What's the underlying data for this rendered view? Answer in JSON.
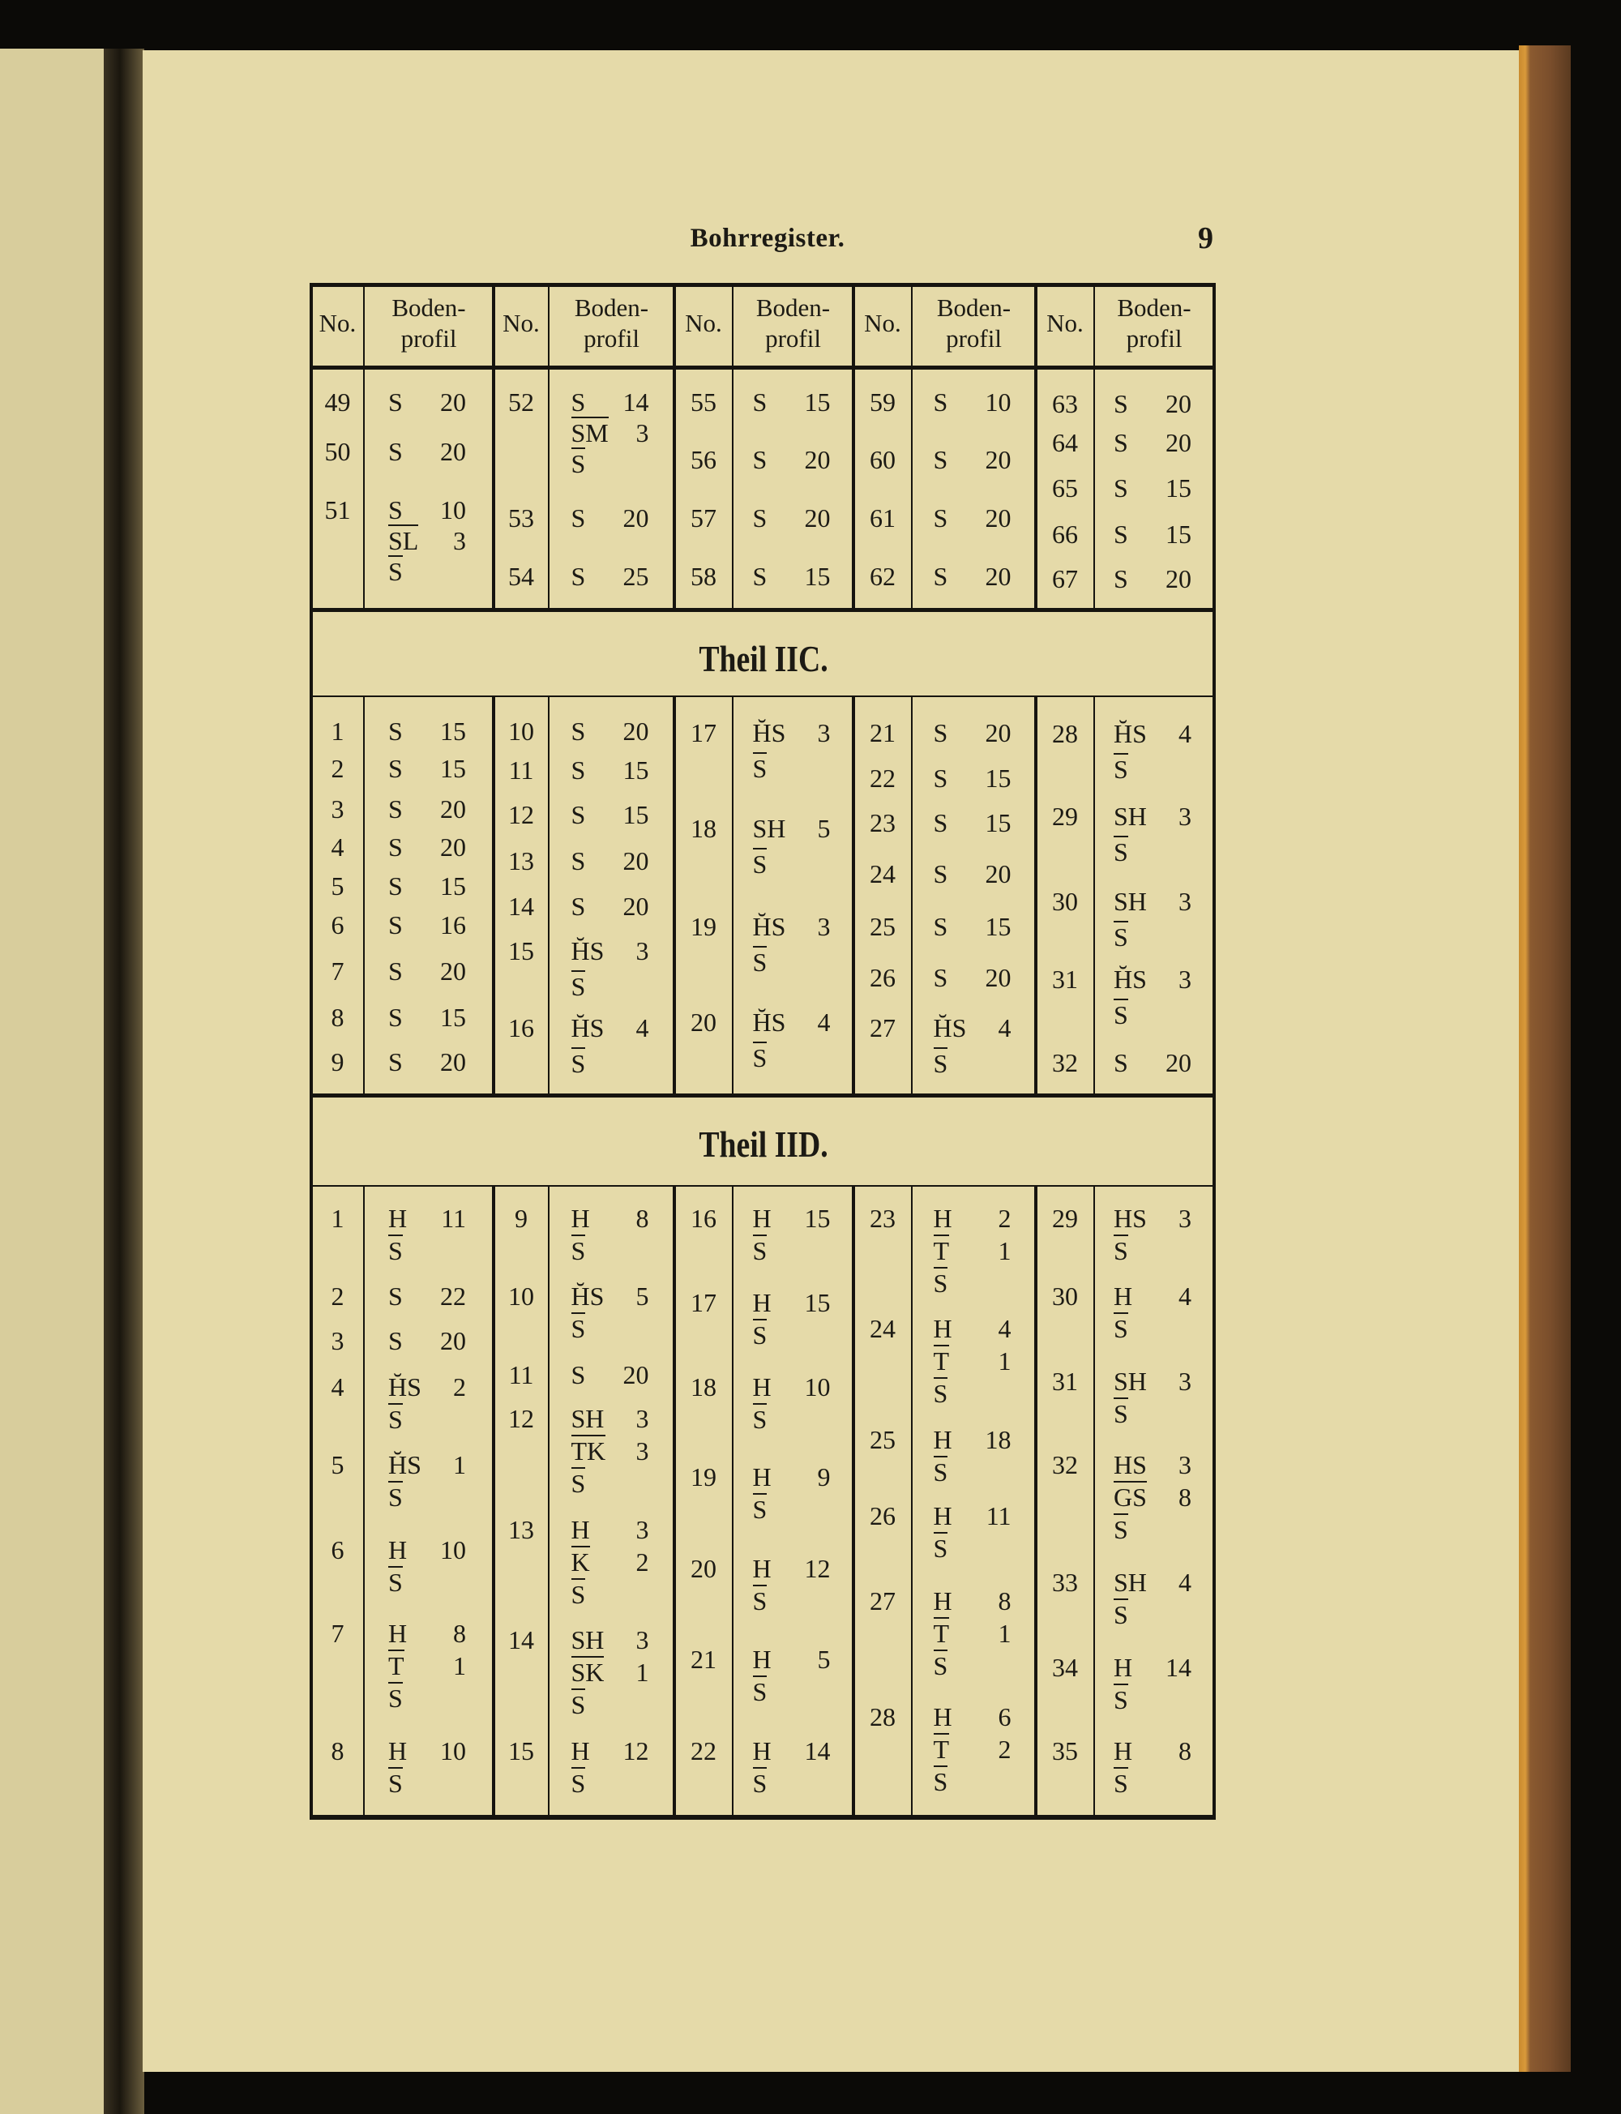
{
  "header": {
    "running_title": "Bohrregister.",
    "page_number": "9"
  },
  "table": {
    "column_headers": {
      "no": "No.",
      "profile_line1": "Boden-",
      "profile_line2": "profil"
    },
    "sections": [
      {
        "title": "",
        "groups": [
          [
            {
              "no": "49",
              "profile": [
                [
                  "S",
                  "20"
                ]
              ]
            },
            {
              "no": "50",
              "profile": [
                [
                  "S",
                  "20"
                ]
              ]
            },
            {
              "no": "51",
              "profile": [
                [
                  "S",
                  "10"
                ],
                [
                  "SL",
                  "3"
                ],
                [
                  "S"
                ]
              ]
            }
          ],
          [
            {
              "no": "52",
              "profile": [
                [
                  "S",
                  "14"
                ],
                [
                  "SM",
                  "3"
                ],
                [
                  "S"
                ]
              ]
            },
            {
              "no": "53",
              "profile": [
                [
                  "S",
                  "20"
                ]
              ]
            },
            {
              "no": "54",
              "profile": [
                [
                  "S",
                  "25"
                ]
              ]
            }
          ],
          [
            {
              "no": "55",
              "profile": [
                [
                  "S",
                  "15"
                ]
              ]
            },
            {
              "no": "56",
              "profile": [
                [
                  "S",
                  "20"
                ]
              ]
            },
            {
              "no": "57",
              "profile": [
                [
                  "S",
                  "20"
                ]
              ]
            },
            {
              "no": "58",
              "profile": [
                [
                  "S",
                  "15"
                ]
              ]
            }
          ],
          [
            {
              "no": "59",
              "profile": [
                [
                  "S",
                  "10"
                ]
              ]
            },
            {
              "no": "60",
              "profile": [
                [
                  "S",
                  "20"
                ]
              ]
            },
            {
              "no": "61",
              "profile": [
                [
                  "S",
                  "20"
                ]
              ]
            },
            {
              "no": "62",
              "profile": [
                [
                  "S",
                  "20"
                ]
              ]
            }
          ],
          [
            {
              "no": "63",
              "profile": [
                [
                  "S",
                  "20"
                ]
              ]
            },
            {
              "no": "64",
              "profile": [
                [
                  "S",
                  "20"
                ]
              ]
            },
            {
              "no": "65",
              "profile": [
                [
                  "S",
                  "15"
                ]
              ]
            },
            {
              "no": "66",
              "profile": [
                [
                  "S",
                  "15"
                ]
              ]
            },
            {
              "no": "67",
              "profile": [
                [
                  "S",
                  "20"
                ]
              ]
            }
          ]
        ]
      },
      {
        "title": "Theil IIC.",
        "groups": [
          [
            {
              "no": "1",
              "profile": [
                [
                  "S",
                  "15"
                ]
              ]
            },
            {
              "no": "2",
              "profile": [
                [
                  "S",
                  "15"
                ]
              ]
            },
            {
              "no": "3",
              "profile": [
                [
                  "S",
                  "20"
                ]
              ]
            },
            {
              "no": "4",
              "profile": [
                [
                  "S",
                  "20"
                ]
              ]
            },
            {
              "no": "5",
              "profile": [
                [
                  "S",
                  "15"
                ]
              ]
            },
            {
              "no": "6",
              "profile": [
                [
                  "S",
                  "16"
                ]
              ]
            },
            {
              "no": "7",
              "profile": [
                [
                  "S",
                  "20"
                ]
              ]
            },
            {
              "no": "8",
              "profile": [
                [
                  "S",
                  "15"
                ]
              ]
            },
            {
              "no": "9",
              "profile": [
                [
                  "S",
                  "20"
                ]
              ]
            }
          ],
          [
            {
              "no": "10",
              "profile": [
                [
                  "S",
                  "20"
                ]
              ]
            },
            {
              "no": "11",
              "profile": [
                [
                  "S",
                  "15"
                ]
              ]
            },
            {
              "no": "12",
              "profile": [
                [
                  "S",
                  "15"
                ]
              ]
            },
            {
              "no": "13",
              "profile": [
                [
                  "S",
                  "20"
                ]
              ]
            },
            {
              "no": "14",
              "profile": [
                [
                  "S",
                  "20"
                ]
              ]
            },
            {
              "no": "15",
              "profile": [
                [
                  "H̆S",
                  "3"
                ],
                [
                  "S"
                ]
              ]
            },
            {
              "no": "16",
              "profile": [
                [
                  "H̆S",
                  "4"
                ],
                [
                  "S"
                ]
              ]
            }
          ],
          [
            {
              "no": "17",
              "profile": [
                [
                  "H̆S",
                  "3"
                ],
                [
                  "S"
                ]
              ]
            },
            {
              "no": "18",
              "profile": [
                [
                  "SH",
                  "5"
                ],
                [
                  "S"
                ]
              ]
            },
            {
              "no": "19",
              "profile": [
                [
                  "H̆S",
                  "3"
                ],
                [
                  "S"
                ]
              ]
            },
            {
              "no": "20",
              "profile": [
                [
                  "H̆S",
                  "4"
                ],
                [
                  "S"
                ]
              ]
            }
          ],
          [
            {
              "no": "21",
              "profile": [
                [
                  "S",
                  "20"
                ]
              ]
            },
            {
              "no": "22",
              "profile": [
                [
                  "S",
                  "15"
                ]
              ]
            },
            {
              "no": "23",
              "profile": [
                [
                  "S",
                  "15"
                ]
              ]
            },
            {
              "no": "24",
              "profile": [
                [
                  "S",
                  "20"
                ]
              ]
            },
            {
              "no": "25",
              "profile": [
                [
                  "S",
                  "15"
                ]
              ]
            },
            {
              "no": "26",
              "profile": [
                [
                  "S",
                  "20"
                ]
              ]
            },
            {
              "no": "27",
              "profile": [
                [
                  "H̆S",
                  "4"
                ],
                [
                  "S"
                ]
              ]
            }
          ],
          [
            {
              "no": "28",
              "profile": [
                [
                  "H̆S",
                  "4"
                ],
                [
                  "S"
                ]
              ]
            },
            {
              "no": "29",
              "profile": [
                [
                  "SH",
                  "3"
                ],
                [
                  "S"
                ]
              ]
            },
            {
              "no": "30",
              "profile": [
                [
                  "SH",
                  "3"
                ],
                [
                  "S"
                ]
              ]
            },
            {
              "no": "31",
              "profile": [
                [
                  "H̆S",
                  "3"
                ],
                [
                  "S"
                ]
              ]
            },
            {
              "no": "32",
              "profile": [
                [
                  "S",
                  "20"
                ]
              ]
            }
          ]
        ]
      },
      {
        "title": "Theil IID.",
        "groups": [
          [
            {
              "no": "1",
              "profile": [
                [
                  "H",
                  "11"
                ],
                [
                  "S"
                ]
              ]
            },
            {
              "no": "2",
              "profile": [
                [
                  "S",
                  "22"
                ]
              ]
            },
            {
              "no": "3",
              "profile": [
                [
                  "S",
                  "20"
                ]
              ]
            },
            {
              "no": "4",
              "profile": [
                [
                  "H̆S",
                  "2"
                ],
                [
                  "S"
                ]
              ]
            },
            {
              "no": "5",
              "profile": [
                [
                  "H̆S",
                  "1"
                ],
                [
                  "S"
                ]
              ]
            },
            {
              "no": "6",
              "profile": [
                [
                  "H",
                  "10"
                ],
                [
                  "S"
                ]
              ]
            },
            {
              "no": "7",
              "profile": [
                [
                  "H",
                  "8"
                ],
                [
                  "T",
                  "1"
                ],
                [
                  "S"
                ]
              ]
            },
            {
              "no": "8",
              "profile": [
                [
                  "H",
                  "10"
                ],
                [
                  "S"
                ]
              ]
            }
          ],
          [
            {
              "no": "9",
              "profile": [
                [
                  "H",
                  "8"
                ],
                [
                  "S"
                ]
              ]
            },
            {
              "no": "10",
              "profile": [
                [
                  "H̆S",
                  "5"
                ],
                [
                  "S"
                ]
              ]
            },
            {
              "no": "11",
              "profile": [
                [
                  "S",
                  "20"
                ]
              ]
            },
            {
              "no": "12",
              "profile": [
                [
                  "SH",
                  "3"
                ],
                [
                  "TK",
                  "3"
                ],
                [
                  "S"
                ]
              ]
            },
            {
              "no": "13",
              "profile": [
                [
                  "H",
                  "3"
                ],
                [
                  "K",
                  "2"
                ],
                [
                  "S"
                ]
              ]
            },
            {
              "no": "14",
              "profile": [
                [
                  "SH",
                  "3"
                ],
                [
                  "SK",
                  "1"
                ],
                [
                  "S"
                ]
              ]
            },
            {
              "no": "15",
              "profile": [
                [
                  "H",
                  "12"
                ],
                [
                  "S"
                ]
              ]
            }
          ],
          [
            {
              "no": "16",
              "profile": [
                [
                  "H",
                  "15"
                ],
                [
                  "S"
                ]
              ]
            },
            {
              "no": "17",
              "profile": [
                [
                  "H",
                  "15"
                ],
                [
                  "S"
                ]
              ]
            },
            {
              "no": "18",
              "profile": [
                [
                  "H",
                  "10"
                ],
                [
                  "S"
                ]
              ]
            },
            {
              "no": "19",
              "profile": [
                [
                  "H",
                  "9"
                ],
                [
                  "S"
                ]
              ]
            },
            {
              "no": "20",
              "profile": [
                [
                  "H",
                  "12"
                ],
                [
                  "S"
                ]
              ]
            },
            {
              "no": "21",
              "profile": [
                [
                  "H",
                  "5"
                ],
                [
                  "S"
                ]
              ]
            },
            {
              "no": "22",
              "profile": [
                [
                  "H",
                  "14"
                ],
                [
                  "S"
                ]
              ]
            }
          ],
          [
            {
              "no": "23",
              "profile": [
                [
                  "H",
                  "2"
                ],
                [
                  "T",
                  "1"
                ],
                [
                  "S"
                ]
              ]
            },
            {
              "no": "24",
              "profile": [
                [
                  "H",
                  "4"
                ],
                [
                  "T",
                  "1"
                ],
                [
                  "S"
                ]
              ]
            },
            {
              "no": "25",
              "profile": [
                [
                  "H",
                  "18"
                ],
                [
                  "S"
                ]
              ]
            },
            {
              "no": "26",
              "profile": [
                [
                  "H",
                  "11"
                ],
                [
                  "S"
                ]
              ]
            },
            {
              "no": "27",
              "profile": [
                [
                  "H",
                  "8"
                ],
                [
                  "T",
                  "1"
                ],
                [
                  "S"
                ]
              ]
            },
            {
              "no": "28",
              "profile": [
                [
                  "H",
                  "6"
                ],
                [
                  "T",
                  "2"
                ],
                [
                  "S"
                ]
              ]
            }
          ],
          [
            {
              "no": "29",
              "profile": [
                [
                  "HS",
                  "3"
                ],
                [
                  "S"
                ]
              ]
            },
            {
              "no": "30",
              "profile": [
                [
                  "H",
                  "4"
                ],
                [
                  "S"
                ]
              ]
            },
            {
              "no": "31",
              "profile": [
                [
                  "SH",
                  "3"
                ],
                [
                  "S"
                ]
              ]
            },
            {
              "no": "32",
              "profile": [
                [
                  "HS",
                  "3"
                ],
                [
                  "GS",
                  "8"
                ],
                [
                  "S"
                ]
              ]
            },
            {
              "no": "33",
              "profile": [
                [
                  "SH",
                  "4"
                ],
                [
                  "S"
                ]
              ]
            },
            {
              "no": "34",
              "profile": [
                [
                  "H",
                  "14"
                ],
                [
                  "S"
                ]
              ]
            },
            {
              "no": "35",
              "profile": [
                [
                  "H",
                  "8"
                ],
                [
                  "S"
                ]
              ]
            }
          ]
        ]
      }
    ]
  }
}
